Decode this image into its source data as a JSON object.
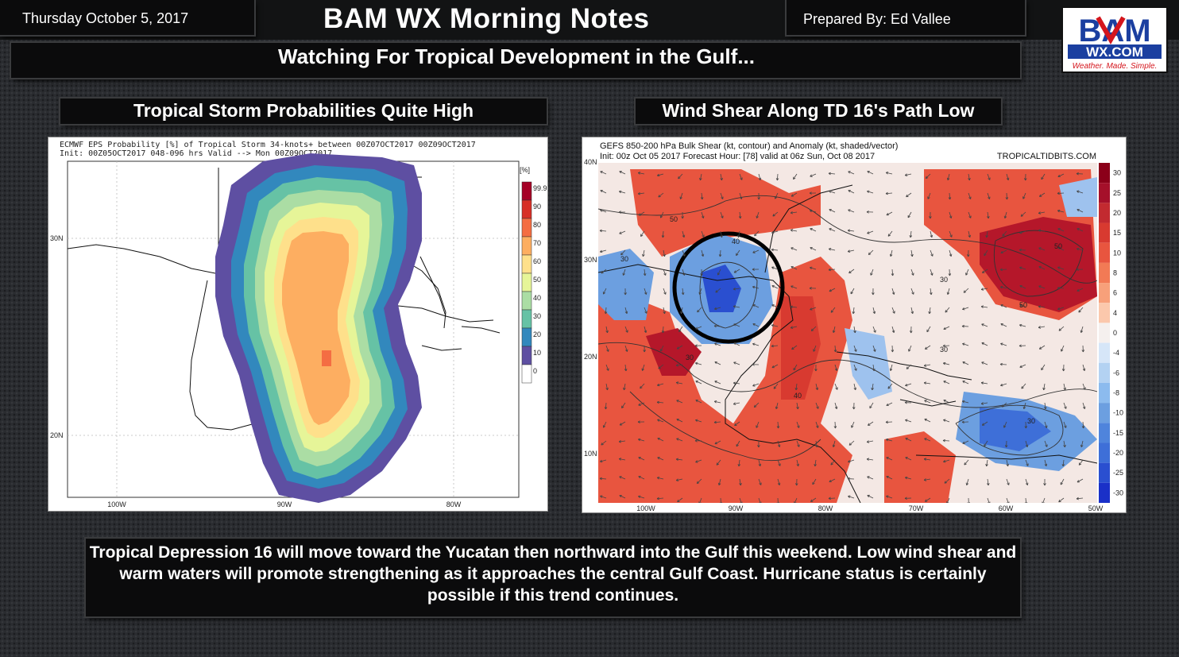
{
  "header": {
    "date": "Thursday October 5, 2017",
    "title": "BAM WX Morning Notes",
    "prepared_by": "Prepared By: Ed Vallee",
    "logo": {
      "top": "BAM",
      "middle": "WX.COM",
      "tagline": "Weather. Made. Simple."
    }
  },
  "subtitle": "Watching For Tropical Development in the Gulf...",
  "left_panel": {
    "title": "Tropical Storm Probabilities Quite High",
    "map_header_line1": "ECMWF EPS Probability [%] of Tropical Storm 34-knots+ between 00Z07OCT2017 00Z09OCT2017",
    "map_header_line2": "Init: 00Z05OCT2017 048-096 hrs Valid --> Mon 00Z09OCT2017",
    "legend_unit": "[%]",
    "legend_labels": [
      "99.9",
      "90",
      "80",
      "70",
      "60",
      "50",
      "40",
      "30",
      "20",
      "10",
      "0"
    ],
    "legend_colors": [
      "#a50026",
      "#d73027",
      "#f46d43",
      "#fdae61",
      "#fee08b",
      "#e6f598",
      "#abdda4",
      "#66c2a5",
      "#3288bd",
      "#5e4fa2",
      "#ffffff"
    ],
    "lat_labels": [
      "30N",
      "20N"
    ],
    "lon_labels": [
      "100W",
      "90W",
      "80W"
    ]
  },
  "right_panel": {
    "title": "Wind Shear Along TD 16's Path Low",
    "map_header_line1": "GEFS 850-200 hPa Bulk Shear (kt, contour) and Anomaly (kt, shaded/vector)",
    "map_header_line2": "Init: 00z Oct 05 2017   Forecast Hour: [78]   valid at 06z Sun, Oct 08 2017",
    "watermark": "TROPICALTIDBITS.COM",
    "colorbar_labels": [
      "30",
      "25",
      "20",
      "15",
      "10",
      "8",
      "6",
      "4",
      "0",
      "-4",
      "-6",
      "-8",
      "-10",
      "-15",
      "-20",
      "-25",
      "-30"
    ],
    "lat_labels": [
      "40N",
      "30N",
      "20N",
      "10N"
    ],
    "lon_labels": [
      "100W",
      "90W",
      "80W",
      "70W",
      "60W",
      "50W"
    ],
    "contour_labels": [
      "50",
      "40",
      "30",
      "30",
      "30",
      "50",
      "50",
      "30",
      "40",
      "30"
    ]
  },
  "summary": "Tropical Depression 16 will move toward the Yucatan then northward into the Gulf this weekend. Low wind shear and warm waters will promote strengthening as it approaches the central Gulf Coast. Hurricane status is certainly possible if this trend continues."
}
